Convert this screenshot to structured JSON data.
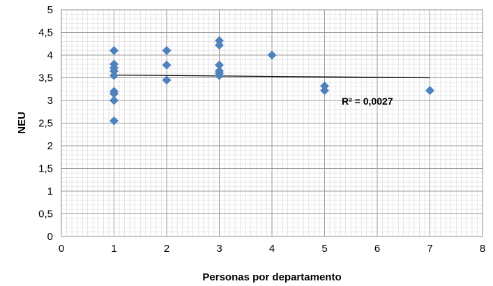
{
  "chart_data": {
    "type": "scatter",
    "title": "",
    "xlabel": "Personas por departamento",
    "ylabel": "NEU",
    "xlim": [
      0,
      8
    ],
    "ylim": [
      0,
      5
    ],
    "x_ticks": [
      "0",
      "1",
      "2",
      "3",
      "4",
      "5",
      "6",
      "7",
      "8"
    ],
    "y_ticks": [
      "0",
      "0,5",
      "1",
      "1,5",
      "2",
      "2,5",
      "3",
      "3,5",
      "4",
      "4,5",
      "5"
    ],
    "grid": true,
    "minor_grid": true,
    "marker_color": "#4f81bd",
    "trend_color": "#000000",
    "points": [
      {
        "x": 1,
        "y": 4.1
      },
      {
        "x": 1,
        "y": 3.8
      },
      {
        "x": 1,
        "y": 3.72
      },
      {
        "x": 1,
        "y": 3.65
      },
      {
        "x": 1,
        "y": 3.55
      },
      {
        "x": 1,
        "y": 3.2
      },
      {
        "x": 1,
        "y": 3.15
      },
      {
        "x": 1,
        "y": 3.0
      },
      {
        "x": 1,
        "y": 2.55
      },
      {
        "x": 2,
        "y": 4.1
      },
      {
        "x": 2,
        "y": 3.78
      },
      {
        "x": 2,
        "y": 3.45
      },
      {
        "x": 3,
        "y": 4.32
      },
      {
        "x": 3,
        "y": 4.22
      },
      {
        "x": 3,
        "y": 3.78
      },
      {
        "x": 3,
        "y": 3.65
      },
      {
        "x": 3,
        "y": 3.6
      },
      {
        "x": 3,
        "y": 3.55
      },
      {
        "x": 4,
        "y": 4.0
      },
      {
        "x": 5,
        "y": 3.32
      },
      {
        "x": 5,
        "y": 3.22
      },
      {
        "x": 7,
        "y": 3.22
      }
    ],
    "trendline": {
      "x": [
        1,
        7
      ],
      "y": [
        3.56,
        3.5
      ],
      "label": "R² = 0,0027"
    }
  }
}
